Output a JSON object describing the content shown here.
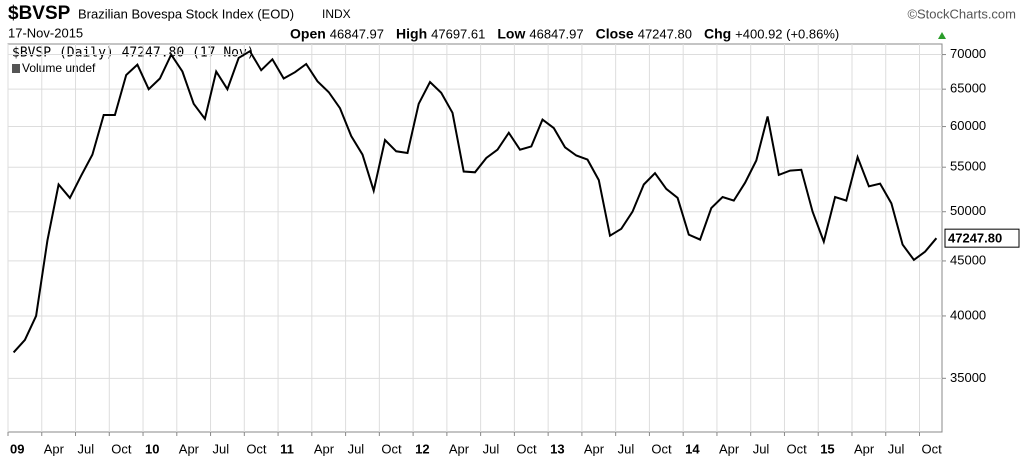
{
  "chart_data": {
    "type": "line",
    "title": "$BVSP",
    "subtitle": "Brazilian Bovespa Stock Index (EOD)",
    "exchange": "INDX",
    "watermark": "©StockCharts.com",
    "date": "17-Nov-2015",
    "quote": [
      {
        "name": "Open",
        "text": "46847.97"
      },
      {
        "name": "High",
        "text": "47697.61"
      },
      {
        "name": "Low",
        "text": "46847.97"
      },
      {
        "name": "Close",
        "text": "47247.80"
      },
      {
        "name": "Chg",
        "text": "+400.92 (+0.86%)"
      }
    ],
    "volume_legend": "Volume undef",
    "last_label": "47247.80",
    "categories": [
      "09",
      null,
      null,
      "Apr",
      null,
      null,
      "Jul",
      null,
      null,
      "Oct",
      null,
      null,
      "10",
      null,
      null,
      "Apr",
      null,
      null,
      "Jul",
      null,
      null,
      "Oct",
      null,
      null,
      "11",
      null,
      null,
      "Apr",
      null,
      null,
      "Jul",
      null,
      null,
      "Oct",
      null,
      null,
      "12",
      null,
      null,
      "Apr",
      null,
      null,
      "Jul",
      null,
      null,
      "Oct",
      null,
      null,
      "13",
      null,
      null,
      "Apr",
      null,
      null,
      "Jul",
      null,
      null,
      "Oct",
      null,
      null,
      "14",
      null,
      null,
      "Apr",
      null,
      null,
      "Jul",
      null,
      null,
      "Oct",
      null,
      null,
      "15",
      null,
      null,
      "Apr",
      null,
      null,
      "Jul",
      null,
      null,
      "Oct",
      null
    ],
    "series": [
      {
        "name": "$BVSP (Daily) 47247.80 (17 Nov)",
        "color": "#000000",
        "values": [
          37000,
          38000,
          40000,
          47000,
          53000,
          51500,
          54000,
          56500,
          61500,
          61500,
          67000,
          68500,
          65000,
          66500,
          70000,
          67500,
          63000,
          61000,
          67500,
          65000,
          69500,
          70500,
          67700,
          69300,
          66500,
          67400,
          68600,
          66100,
          64600,
          62400,
          58800,
          56500,
          52300,
          58300,
          56900,
          56700,
          63000,
          66000,
          64500,
          61800,
          54500,
          54400,
          56100,
          57100,
          59200,
          57100,
          57500,
          60900,
          59800,
          57400,
          56400,
          55900,
          53500,
          47500,
          48200,
          50000,
          53000,
          54300,
          52500,
          51500,
          47600,
          47100,
          50400,
          51600,
          51200,
          53200,
          55800,
          61300,
          54100,
          54600,
          54700,
          50000,
          46900,
          51600,
          51200,
          56200,
          52800,
          53100,
          50900,
          46600,
          45100,
          45900,
          47247.8
        ]
      }
    ],
    "log_scale": true,
    "ylim": [
      31200,
      71600
    ],
    "yticks": [
      35000,
      40000,
      45000,
      50000,
      55000,
      60000,
      65000,
      70000
    ],
    "grid": true
  }
}
